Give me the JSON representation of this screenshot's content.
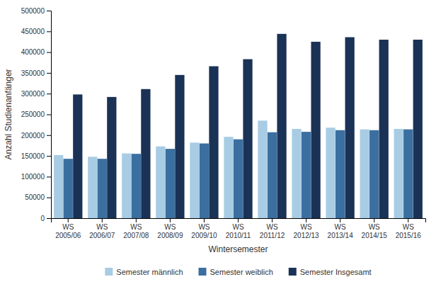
{
  "chart_data": {
    "type": "bar",
    "xlabel": "Wintersemester",
    "ylabel": "Anzahl Studienanfänger",
    "categories": [
      "WS\n2005/06",
      "WS\n2006/07",
      "WS\n2007/08",
      "WS\n2008/09",
      "WS\n2009/10",
      "WS\n2010/11",
      "WS\n2011/12",
      "WS\n2012/13",
      "WS\n2013/14",
      "WS\n2014/15",
      "WS\n2015/16"
    ],
    "series": [
      {
        "name": "Semester männlich",
        "color": "#a8cce4",
        "values": [
          152000,
          148000,
          156000,
          173000,
          182000,
          196000,
          235000,
          215000,
          218000,
          214000,
          215000
        ]
      },
      {
        "name": "Semester weiblich",
        "color": "#3b6fa0",
        "values": [
          143000,
          143000,
          155000,
          167000,
          180000,
          190000,
          207000,
          208000,
          212000,
          212000,
          214000
        ]
      },
      {
        "name": "Semester Insgesamt",
        "color": "#1a3255",
        "values": [
          298000,
          292000,
          311000,
          345000,
          366000,
          383000,
          444000,
          425000,
          436000,
          430000,
          430000
        ]
      }
    ],
    "ylim": [
      0,
      500000
    ],
    "yticks": [
      0,
      50000,
      100000,
      150000,
      200000,
      250000,
      300000,
      350000,
      400000,
      450000,
      500000
    ],
    "grid": false,
    "legend": "bottom"
  }
}
